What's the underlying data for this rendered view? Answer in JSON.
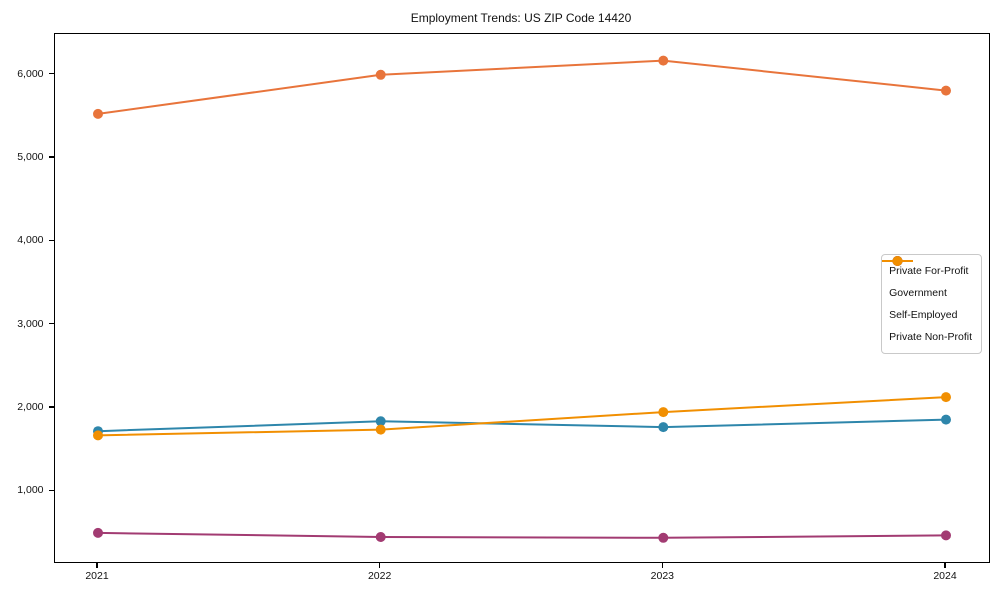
{
  "chart": {
    "title": "Employment Trends: US ZIP Code 14420"
  },
  "chart_data": {
    "type": "line",
    "title": "Employment Trends: US ZIP Code 14420",
    "xlabel": "",
    "ylabel": "",
    "categories": [
      "2021",
      "2022",
      "2023",
      "2024"
    ],
    "x": [
      2021,
      2022,
      2023,
      2024
    ],
    "series": [
      {
        "name": "Private For-Profit",
        "color": "#E8743B",
        "values": [
          5530,
          6000,
          6170,
          5810
        ]
      },
      {
        "name": "Government",
        "color": "#2E86AB",
        "values": [
          1720,
          1840,
          1770,
          1860
        ]
      },
      {
        "name": "Self-Employed",
        "color": "#A23B72",
        "values": [
          500,
          450,
          440,
          470
        ]
      },
      {
        "name": "Private Non-Profit",
        "color": "#F18F01",
        "values": [
          1670,
          1740,
          1950,
          2130
        ]
      }
    ],
    "ylim": [
      150,
      6490
    ],
    "yticks": [
      1000,
      2000,
      3000,
      4000,
      5000,
      6000
    ],
    "ytick_labels": [
      "1,000",
      "2,000",
      "3,000",
      "4,000",
      "5,000",
      "6,000"
    ],
    "grid": false,
    "legend_position": "center right",
    "marker": "circle",
    "axis_color": "#000000",
    "background_color": "#ffffff"
  }
}
